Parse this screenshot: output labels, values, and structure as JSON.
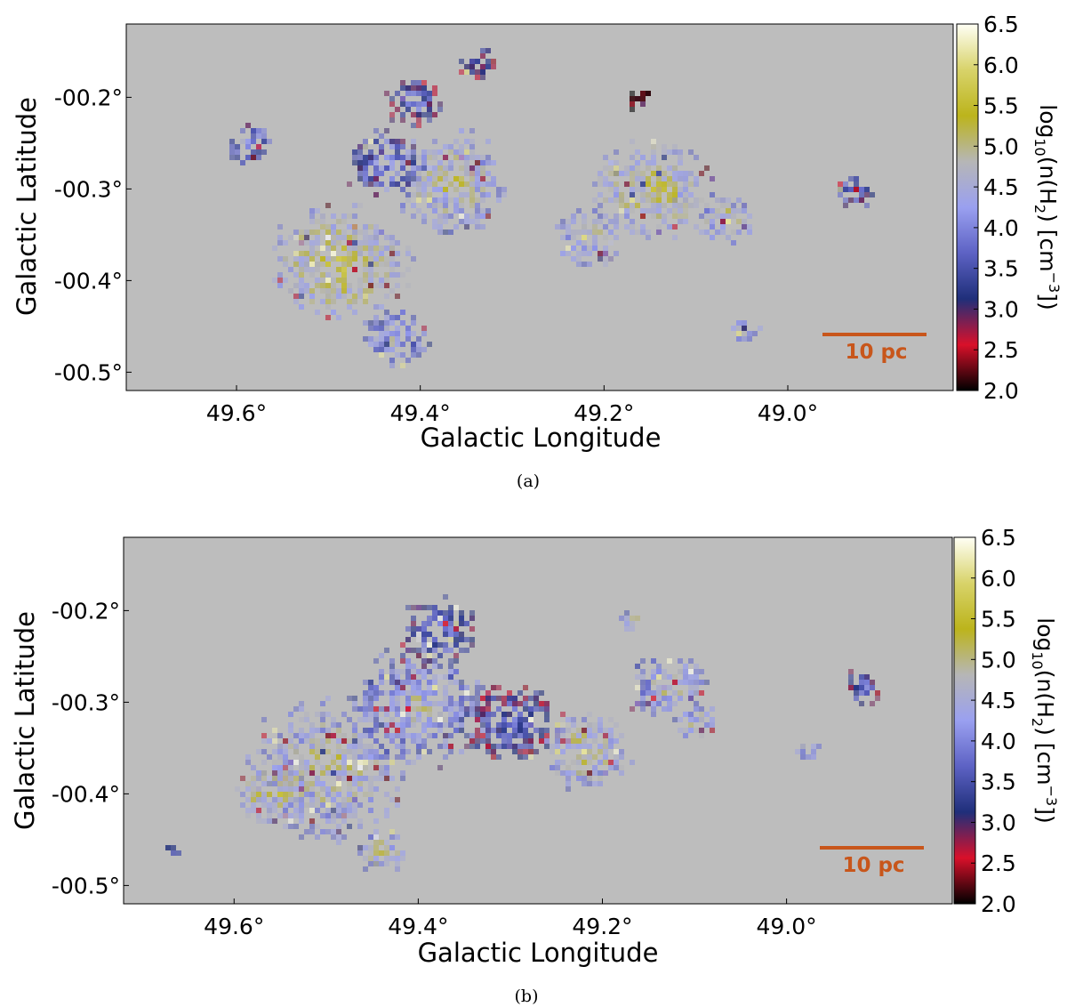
{
  "colors": {
    "background_gray": "#bdbdbd",
    "scale_bar": "#c8561b",
    "colormap": [
      "#000000",
      "#d9102a",
      "#1f2f7a",
      "#5d62c4",
      "#9aa0f0",
      "#b6b6b6",
      "#bcb41c",
      "#d8d36a",
      "#fffff5"
    ]
  },
  "chart_data": [
    {
      "type": "heatmap",
      "panel_caption": "(a)",
      "xlabel": "Galactic Longitude",
      "ylabel": "Galactic Latitude",
      "x_ticks": [
        49.6,
        49.4,
        49.2,
        49.0
      ],
      "x_tick_labels": [
        "49.6°",
        "49.4°",
        "49.2°",
        "49.0°"
      ],
      "x_range": [
        49.72,
        48.82
      ],
      "y_ticks": [
        -0.2,
        -0.3,
        -0.4,
        -0.5
      ],
      "y_tick_labels": [
        "-00.2°",
        "-00.3°",
        "-00.4°",
        "-00.5°"
      ],
      "y_range": [
        -0.52,
        -0.12
      ],
      "colorbar": {
        "label": "log10(n(H2) [cm−3])",
        "ticks": [
          2.0,
          2.5,
          3.0,
          3.5,
          4.0,
          4.5,
          5.0,
          5.5,
          6.0,
          6.5
        ],
        "tick_labels": [
          "2.0",
          "2.5",
          "3.0",
          "3.5",
          "4.0",
          "4.5",
          "5.0",
          "5.5",
          "6.0",
          "6.5"
        ],
        "range": [
          2.0,
          6.5
        ]
      },
      "scale_bar_label": "10 pc",
      "clumps": [
        {
          "l": 49.49,
          "b": -0.38,
          "value": 5.3,
          "size": 0.07
        },
        {
          "l": 49.37,
          "b": -0.29,
          "value": 5.0,
          "size": 0.06
        },
        {
          "l": 49.41,
          "b": -0.2,
          "value": 3.9,
          "size": 0.03
        },
        {
          "l": 49.44,
          "b": -0.27,
          "value": 4.2,
          "size": 0.04
        },
        {
          "l": 49.16,
          "b": -0.2,
          "value": 2.8,
          "size": 0.015
        },
        {
          "l": 49.15,
          "b": -0.3,
          "value": 5.2,
          "size": 0.06
        },
        {
          "l": 49.22,
          "b": -0.35,
          "value": 5.0,
          "size": 0.035
        },
        {
          "l": 49.07,
          "b": -0.33,
          "value": 5.0,
          "size": 0.03
        },
        {
          "l": 49.34,
          "b": -0.16,
          "value": 3.7,
          "size": 0.02
        },
        {
          "l": 48.93,
          "b": -0.3,
          "value": 4.0,
          "size": 0.02
        },
        {
          "l": 49.05,
          "b": -0.45,
          "value": 4.8,
          "size": 0.015
        },
        {
          "l": 49.43,
          "b": -0.46,
          "value": 4.6,
          "size": 0.035
        },
        {
          "l": 49.59,
          "b": -0.25,
          "value": 4.3,
          "size": 0.025
        }
      ]
    },
    {
      "type": "heatmap",
      "panel_caption": "(b)",
      "xlabel": "Galactic Longitude",
      "ylabel": "Galactic Latitude",
      "x_ticks": [
        49.6,
        49.4,
        49.2,
        49.0
      ],
      "x_tick_labels": [
        "49.6°",
        "49.4°",
        "49.2°",
        "49.0°"
      ],
      "x_range": [
        49.72,
        48.82
      ],
      "y_ticks": [
        -0.2,
        -0.3,
        -0.4,
        -0.5
      ],
      "y_tick_labels": [
        "-00.2°",
        "-00.3°",
        "-00.4°",
        "-00.5°"
      ],
      "y_range": [
        -0.52,
        -0.12
      ],
      "colorbar": {
        "label": "log10(n(H2) [cm−3])",
        "ticks": [
          2.0,
          2.5,
          3.0,
          3.5,
          4.0,
          4.5,
          5.0,
          5.5,
          6.0,
          6.5
        ],
        "tick_labels": [
          "2.0",
          "2.5",
          "3.0",
          "3.5",
          "4.0",
          "4.5",
          "5.0",
          "5.5",
          "6.0",
          "6.5"
        ],
        "range": [
          2.0,
          6.5
        ]
      },
      "scale_bar_label": "10 pc",
      "clumps": [
        {
          "l": 49.5,
          "b": -0.37,
          "value": 5.0,
          "size": 0.08
        },
        {
          "l": 49.4,
          "b": -0.3,
          "value": 4.7,
          "size": 0.07
        },
        {
          "l": 49.38,
          "b": -0.22,
          "value": 4.0,
          "size": 0.04
        },
        {
          "l": 49.3,
          "b": -0.32,
          "value": 3.8,
          "size": 0.05
        },
        {
          "l": 49.22,
          "b": -0.35,
          "value": 5.1,
          "size": 0.045
        },
        {
          "l": 49.13,
          "b": -0.28,
          "value": 4.8,
          "size": 0.04
        },
        {
          "l": 49.17,
          "b": -0.21,
          "value": 5.0,
          "size": 0.012
        },
        {
          "l": 49.1,
          "b": -0.32,
          "value": 4.9,
          "size": 0.02
        },
        {
          "l": 48.92,
          "b": -0.28,
          "value": 3.8,
          "size": 0.02
        },
        {
          "l": 48.98,
          "b": -0.35,
          "value": 4.7,
          "size": 0.012
        },
        {
          "l": 49.56,
          "b": -0.4,
          "value": 5.3,
          "size": 0.035
        },
        {
          "l": 49.44,
          "b": -0.46,
          "value": 5.0,
          "size": 0.025
        },
        {
          "l": 49.67,
          "b": -0.46,
          "value": 4.0,
          "size": 0.008
        }
      ]
    }
  ]
}
